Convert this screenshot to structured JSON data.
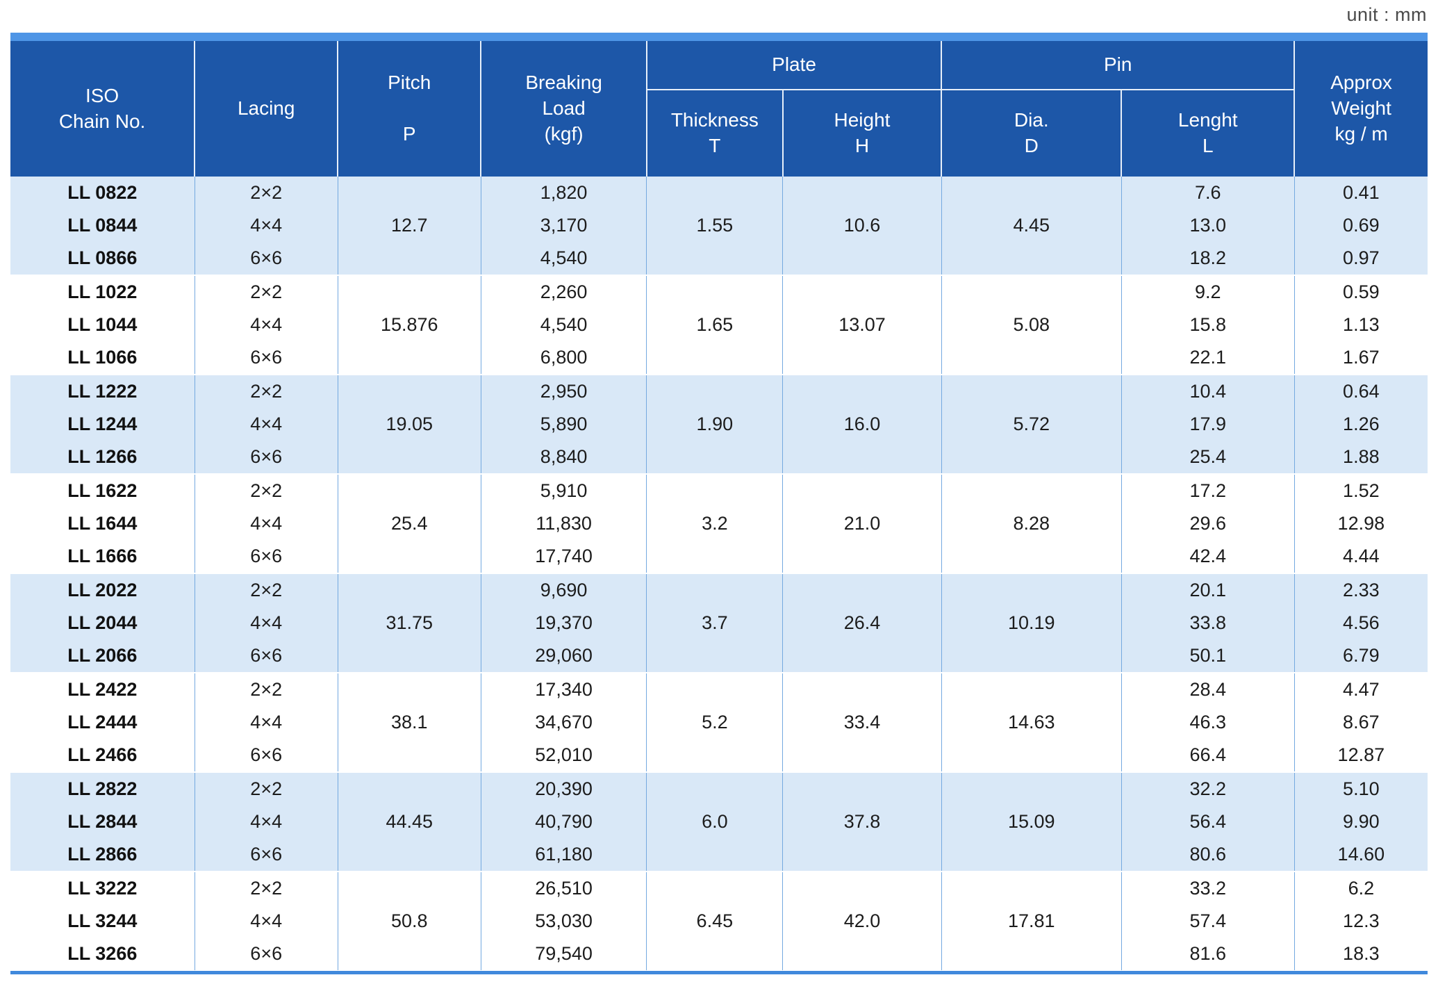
{
  "meta": {
    "unit_label": "unit : mm"
  },
  "colors": {
    "header_blue": "#1d57a8",
    "top_strip_blue": "#4e95e6",
    "band_light_blue": "#d9e8f7",
    "grid_line_blue": "#74a9e0",
    "bottom_band_blue": "#4089dc",
    "text_dark": "#1c1c1c"
  },
  "table": {
    "header": {
      "iso_chain_no": "ISO\nChain No.",
      "lacing": "Lacing",
      "pitch": "Pitch\n\nP",
      "breaking_load": "Breaking\nLoad\n(kgf)",
      "plate": "Plate",
      "thickness": "Thickness\nT",
      "height": "Height\nH",
      "pin": "Pin",
      "dia": "Dia.\nD",
      "length": "Lenght\nL",
      "approx_weight": "Approx\nWeight\nkg / m"
    },
    "groups": [
      {
        "pitch": "12.7",
        "thickness": "1.55",
        "height": "10.6",
        "dia": "4.45",
        "rows": [
          {
            "chain_no": "LL 0822",
            "lacing": "2×2",
            "breaking_load": "1,820",
            "length": "7.6",
            "weight": "0.41"
          },
          {
            "chain_no": "LL 0844",
            "lacing": "4×4",
            "breaking_load": "3,170",
            "length": "13.0",
            "weight": "0.69"
          },
          {
            "chain_no": "LL 0866",
            "lacing": "6×6",
            "breaking_load": "4,540",
            "length": "18.2",
            "weight": "0.97"
          }
        ]
      },
      {
        "pitch": "15.876",
        "thickness": "1.65",
        "height": "13.07",
        "dia": "5.08",
        "rows": [
          {
            "chain_no": "LL 1022",
            "lacing": "2×2",
            "breaking_load": "2,260",
            "length": "9.2",
            "weight": "0.59"
          },
          {
            "chain_no": "LL 1044",
            "lacing": "4×4",
            "breaking_load": "4,540",
            "length": "15.8",
            "weight": "1.13"
          },
          {
            "chain_no": "LL 1066",
            "lacing": "6×6",
            "breaking_load": "6,800",
            "length": "22.1",
            "weight": "1.67"
          }
        ]
      },
      {
        "pitch": "19.05",
        "thickness": "1.90",
        "height": "16.0",
        "dia": "5.72",
        "rows": [
          {
            "chain_no": "LL 1222",
            "lacing": "2×2",
            "breaking_load": "2,950",
            "length": "10.4",
            "weight": "0.64"
          },
          {
            "chain_no": "LL 1244",
            "lacing": "4×4",
            "breaking_load": "5,890",
            "length": "17.9",
            "weight": "1.26"
          },
          {
            "chain_no": "LL 1266",
            "lacing": "6×6",
            "breaking_load": "8,840",
            "length": "25.4",
            "weight": "1.88"
          }
        ]
      },
      {
        "pitch": "25.4",
        "thickness": "3.2",
        "height": "21.0",
        "dia": "8.28",
        "rows": [
          {
            "chain_no": "LL 1622",
            "lacing": "2×2",
            "breaking_load": "5,910",
            "length": "17.2",
            "weight": "1.52"
          },
          {
            "chain_no": "LL 1644",
            "lacing": "4×4",
            "breaking_load": "11,830",
            "length": "29.6",
            "weight": "12.98"
          },
          {
            "chain_no": "LL 1666",
            "lacing": "6×6",
            "breaking_load": "17,740",
            "length": "42.4",
            "weight": "4.44"
          }
        ]
      },
      {
        "pitch": "31.75",
        "thickness": "3.7",
        "height": "26.4",
        "dia": "10.19",
        "rows": [
          {
            "chain_no": "LL 2022",
            "lacing": "2×2",
            "breaking_load": "9,690",
            "length": "20.1",
            "weight": "2.33"
          },
          {
            "chain_no": "LL 2044",
            "lacing": "4×4",
            "breaking_load": "19,370",
            "length": "33.8",
            "weight": "4.56"
          },
          {
            "chain_no": "LL 2066",
            "lacing": "6×6",
            "breaking_load": "29,060",
            "length": "50.1",
            "weight": "6.79"
          }
        ]
      },
      {
        "pitch": "38.1",
        "thickness": "5.2",
        "height": "33.4",
        "dia": "14.63",
        "rows": [
          {
            "chain_no": "LL 2422",
            "lacing": "2×2",
            "breaking_load": "17,340",
            "length": "28.4",
            "weight": "4.47"
          },
          {
            "chain_no": "LL 2444",
            "lacing": "4×4",
            "breaking_load": "34,670",
            "length": "46.3",
            "weight": "8.67"
          },
          {
            "chain_no": "LL 2466",
            "lacing": "6×6",
            "breaking_load": "52,010",
            "length": "66.4",
            "weight": "12.87"
          }
        ]
      },
      {
        "pitch": "44.45",
        "thickness": "6.0",
        "height": "37.8",
        "dia": "15.09",
        "rows": [
          {
            "chain_no": "LL 2822",
            "lacing": "2×2",
            "breaking_load": "20,390",
            "length": "32.2",
            "weight": "5.10"
          },
          {
            "chain_no": "LL 2844",
            "lacing": "4×4",
            "breaking_load": "40,790",
            "length": "56.4",
            "weight": "9.90"
          },
          {
            "chain_no": "LL 2866",
            "lacing": "6×6",
            "breaking_load": "61,180",
            "length": "80.6",
            "weight": "14.60"
          }
        ]
      },
      {
        "pitch": "50.8",
        "thickness": "6.45",
        "height": "42.0",
        "dia": "17.81",
        "rows": [
          {
            "chain_no": "LL 3222",
            "lacing": "2×2",
            "breaking_load": "26,510",
            "length": "33.2",
            "weight": "6.2"
          },
          {
            "chain_no": "LL 3244",
            "lacing": "4×4",
            "breaking_load": "53,030",
            "length": "57.4",
            "weight": "12.3"
          },
          {
            "chain_no": "LL 3266",
            "lacing": "6×6",
            "breaking_load": "79,540",
            "length": "81.6",
            "weight": "18.3"
          }
        ]
      }
    ]
  }
}
